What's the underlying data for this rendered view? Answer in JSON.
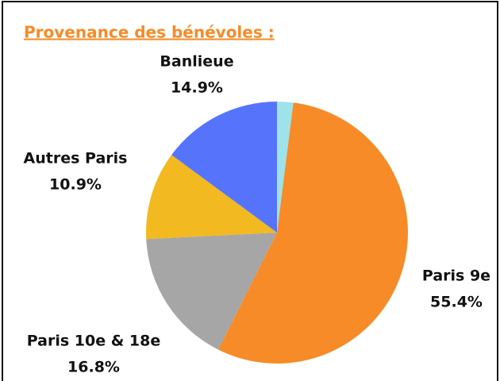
{
  "chart_data": {
    "type": "pie",
    "title": "Provenance des bénévoles :",
    "categories": [
      null,
      "Paris 9e",
      "Paris 10e & 18e",
      "Autres Paris",
      "Banlieue"
    ],
    "values": [
      2.0,
      55.4,
      16.8,
      10.9,
      14.9
    ],
    "value_labels": [
      null,
      "55.4%",
      "16.8%",
      "10.9%",
      "14.9%"
    ],
    "colors": [
      "#9ee3ea",
      "#f68b27",
      "#a6a6a6",
      "#f3b920",
      "#5574fb"
    ],
    "start_angle": 0,
    "direction": "clockwise"
  }
}
